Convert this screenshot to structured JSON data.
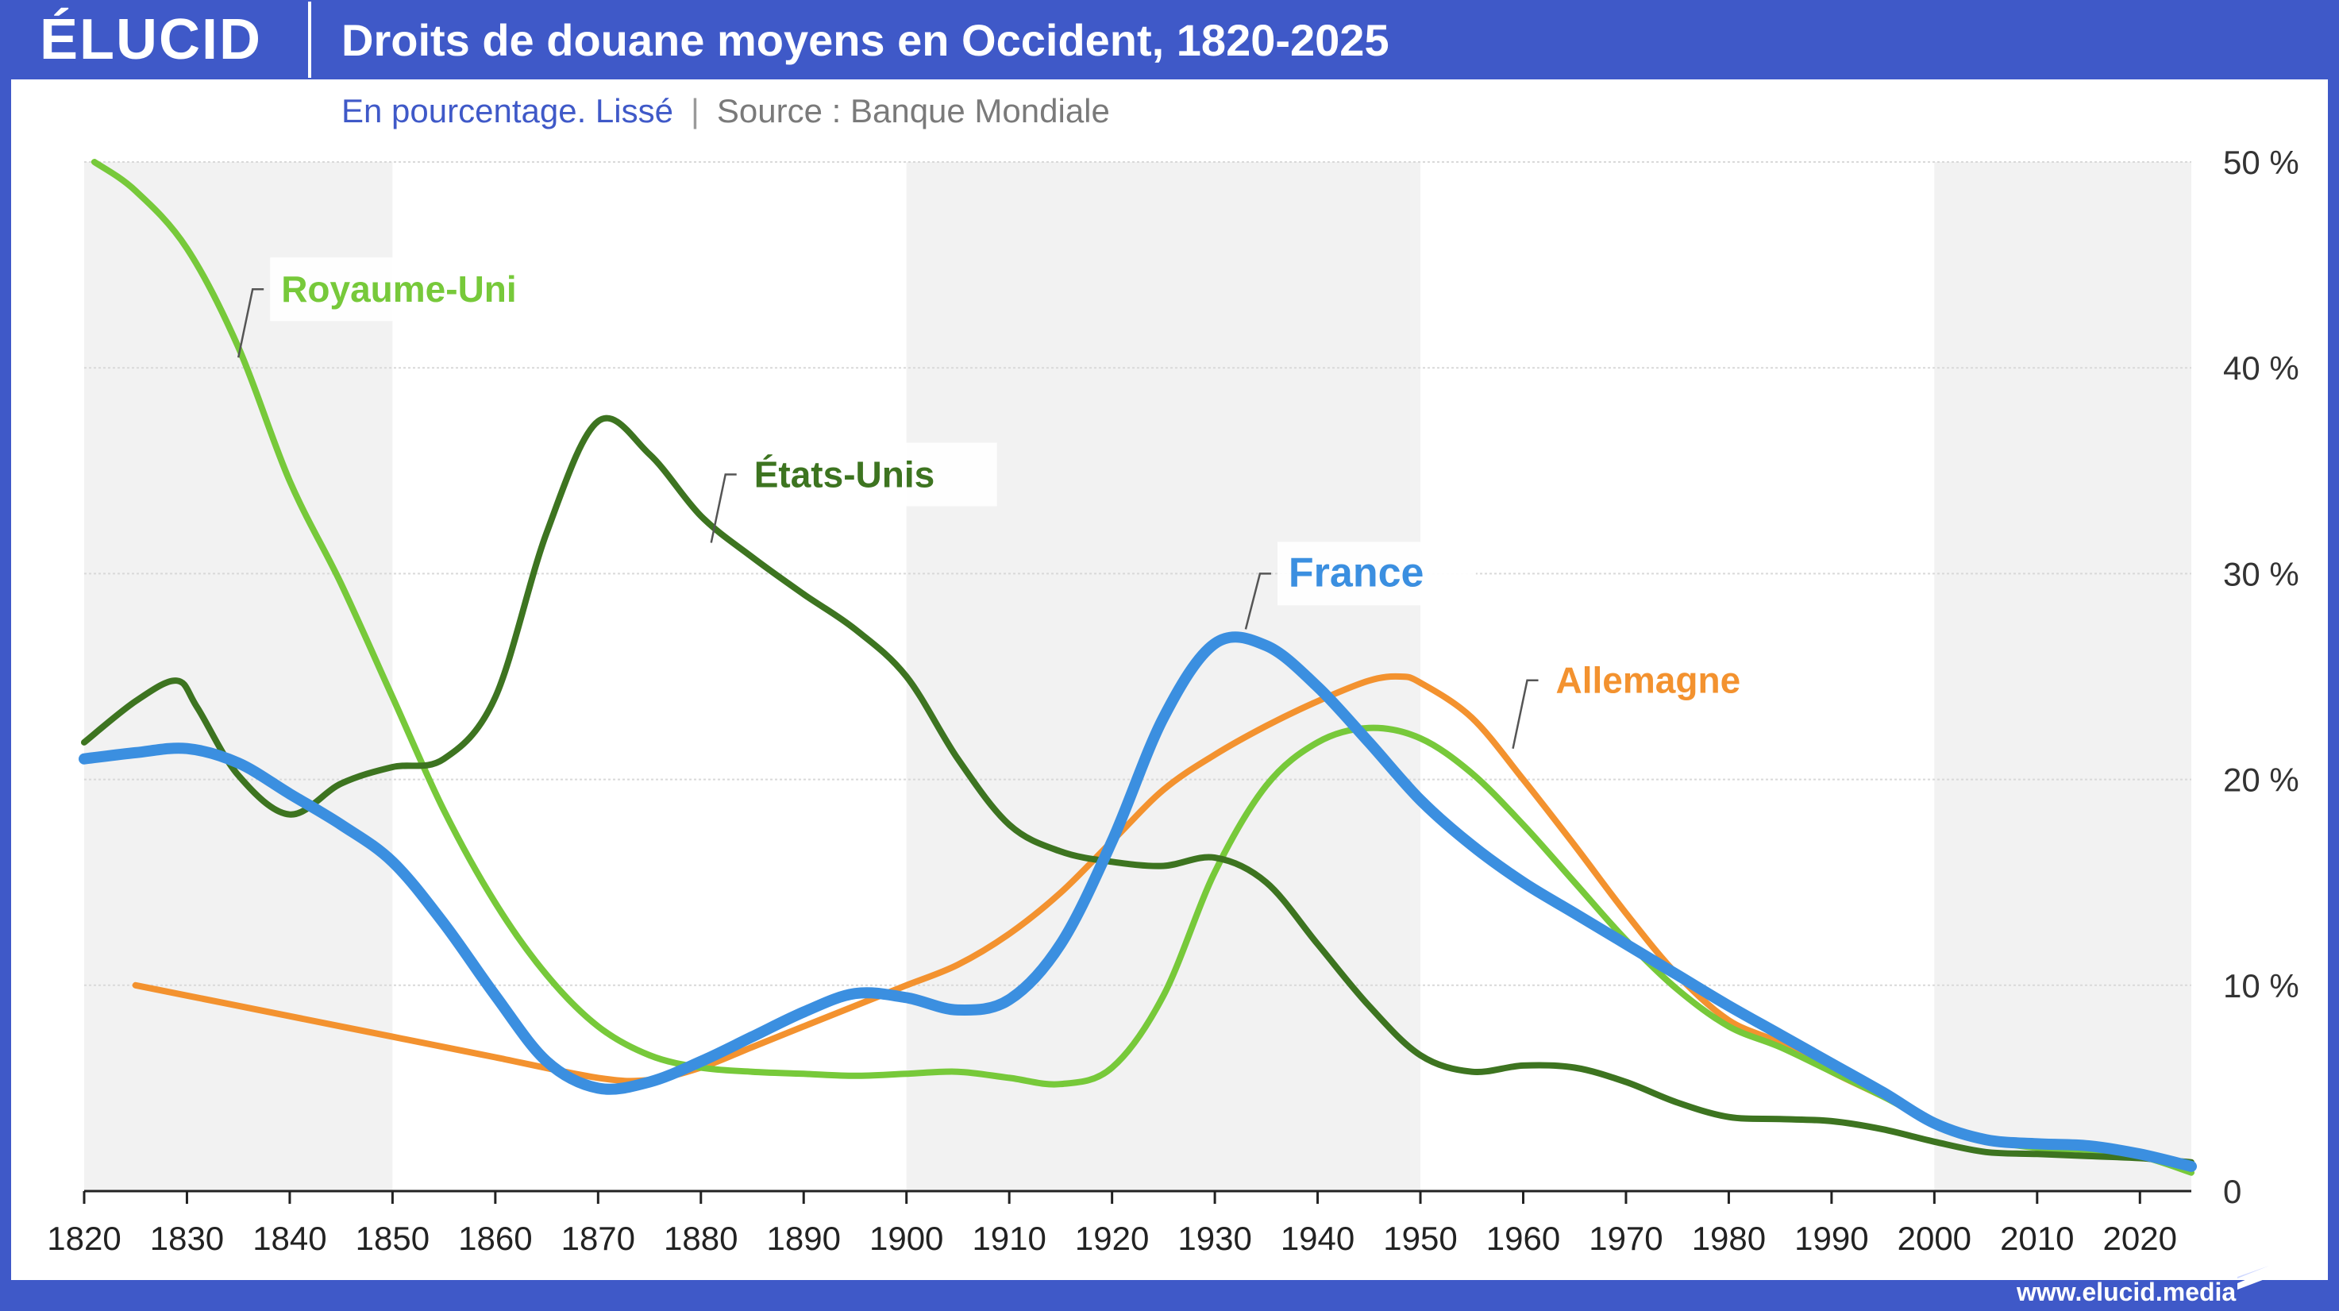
{
  "header": {
    "logo": "ÉLUCID",
    "title": "Droits de douane moyens en Occident, 1820-2025"
  },
  "subtitle": {
    "main": "En pourcentage. Lissé",
    "separator": "|",
    "source": "Source : Banque Mondiale"
  },
  "footer": {
    "url": "www.elucid.media"
  },
  "colors": {
    "brand": "#3f59c8",
    "france": "#3b8fe0",
    "royaume_uni": "#77c93a",
    "etats_unis": "#3d7420",
    "allemagne": "#f3922f"
  },
  "chart_data": {
    "type": "line",
    "title": "Droits de douane moyens en Occident, 1820-2025",
    "subtitle": "En pourcentage. Lissé",
    "xlim": [
      1820,
      2025
    ],
    "ylim": [
      0,
      50
    ],
    "x_ticks": [
      1820,
      1830,
      1840,
      1850,
      1860,
      1870,
      1880,
      1890,
      1900,
      1910,
      1920,
      1930,
      1940,
      1950,
      1960,
      1970,
      1980,
      1990,
      2000,
      2010,
      2020
    ],
    "y_ticks": [
      {
        "value": 0,
        "label": "0"
      },
      {
        "value": 10,
        "label": "10 %"
      },
      {
        "value": 20,
        "label": "20 %"
      },
      {
        "value": 30,
        "label": "30 %"
      },
      {
        "value": 40,
        "label": "40 %"
      },
      {
        "value": 50,
        "label": "50 %"
      }
    ],
    "y_axis_side": "right",
    "grid": "horizontal",
    "shaded_bands": [
      [
        1820,
        1850
      ],
      [
        1900,
        1950
      ],
      [
        2000,
        2025
      ]
    ],
    "series": [
      {
        "name": "Royaume-Uni",
        "color": "#77c93a",
        "label_year": 1835,
        "label_value": 40.5,
        "points": [
          [
            1821,
            50
          ],
          [
            1825,
            48.6
          ],
          [
            1830,
            45.8
          ],
          [
            1835,
            41
          ],
          [
            1840,
            34.5
          ],
          [
            1845,
            29.5
          ],
          [
            1850,
            24
          ],
          [
            1855,
            18.5
          ],
          [
            1860,
            14
          ],
          [
            1865,
            10.5
          ],
          [
            1870,
            8
          ],
          [
            1875,
            6.6
          ],
          [
            1880,
            6
          ],
          [
            1885,
            5.8
          ],
          [
            1890,
            5.7
          ],
          [
            1895,
            5.6
          ],
          [
            1900,
            5.7
          ],
          [
            1905,
            5.8
          ],
          [
            1910,
            5.5
          ],
          [
            1915,
            5.2
          ],
          [
            1920,
            6
          ],
          [
            1925,
            9.5
          ],
          [
            1930,
            15.5
          ],
          [
            1935,
            19.7
          ],
          [
            1940,
            21.8
          ],
          [
            1945,
            22.5
          ],
          [
            1950,
            22
          ],
          [
            1955,
            20.3
          ],
          [
            1960,
            17.8
          ],
          [
            1965,
            15
          ],
          [
            1970,
            12.2
          ],
          [
            1975,
            9.8
          ],
          [
            1980,
            8
          ],
          [
            1985,
            7
          ],
          [
            1990,
            5.8
          ],
          [
            1995,
            4.6
          ],
          [
            2000,
            3.3
          ],
          [
            2005,
            2.5
          ],
          [
            2010,
            2.1
          ],
          [
            2015,
            2
          ],
          [
            2020,
            1.7
          ],
          [
            2025,
            0.9
          ]
        ]
      },
      {
        "name": "États-Unis",
        "color": "#3d7420",
        "label_year": 1881,
        "label_value": 31.5,
        "points": [
          [
            1820,
            21.8
          ],
          [
            1825,
            23.8
          ],
          [
            1829,
            24.8
          ],
          [
            1831,
            23.5
          ],
          [
            1835,
            20.2
          ],
          [
            1840,
            18.3
          ],
          [
            1845,
            19.8
          ],
          [
            1850,
            20.6
          ],
          [
            1855,
            21
          ],
          [
            1860,
            24
          ],
          [
            1865,
            32
          ],
          [
            1870,
            37.4
          ],
          [
            1875,
            35.8
          ],
          [
            1880,
            32.8
          ],
          [
            1885,
            30.8
          ],
          [
            1890,
            29
          ],
          [
            1895,
            27.3
          ],
          [
            1900,
            25
          ],
          [
            1905,
            21
          ],
          [
            1910,
            17.8
          ],
          [
            1915,
            16.5
          ],
          [
            1920,
            16
          ],
          [
            1925,
            15.8
          ],
          [
            1930,
            16.2
          ],
          [
            1935,
            15
          ],
          [
            1940,
            12
          ],
          [
            1945,
            9
          ],
          [
            1950,
            6.6
          ],
          [
            1955,
            5.8
          ],
          [
            1960,
            6.1
          ],
          [
            1965,
            6
          ],
          [
            1970,
            5.3
          ],
          [
            1975,
            4.3
          ],
          [
            1980,
            3.6
          ],
          [
            1985,
            3.5
          ],
          [
            1990,
            3.4
          ],
          [
            1995,
            3
          ],
          [
            2000,
            2.4
          ],
          [
            2005,
            1.9
          ],
          [
            2010,
            1.8
          ],
          [
            2015,
            1.7
          ],
          [
            2020,
            1.6
          ],
          [
            2025,
            1.4
          ]
        ]
      },
      {
        "name": "France",
        "color": "#3b8fe0",
        "label_year": 1933,
        "label_value": 27.3,
        "points": [
          [
            1820,
            21
          ],
          [
            1825,
            21.3
          ],
          [
            1830,
            21.5
          ],
          [
            1835,
            20.8
          ],
          [
            1840,
            19.3
          ],
          [
            1845,
            17.8
          ],
          [
            1850,
            16
          ],
          [
            1855,
            13
          ],
          [
            1860,
            9.5
          ],
          [
            1865,
            6.3
          ],
          [
            1870,
            5
          ],
          [
            1875,
            5.3
          ],
          [
            1880,
            6.3
          ],
          [
            1885,
            7.5
          ],
          [
            1890,
            8.7
          ],
          [
            1895,
            9.6
          ],
          [
            1900,
            9.4
          ],
          [
            1905,
            8.8
          ],
          [
            1910,
            9.3
          ],
          [
            1915,
            12
          ],
          [
            1920,
            17
          ],
          [
            1925,
            23
          ],
          [
            1930,
            26.6
          ],
          [
            1935,
            26.5
          ],
          [
            1940,
            24.5
          ],
          [
            1945,
            21.8
          ],
          [
            1950,
            19
          ],
          [
            1955,
            16.8
          ],
          [
            1960,
            15
          ],
          [
            1965,
            13.5
          ],
          [
            1970,
            12
          ],
          [
            1975,
            10.5
          ],
          [
            1980,
            9
          ],
          [
            1985,
            7.6
          ],
          [
            1990,
            6.2
          ],
          [
            1995,
            4.8
          ],
          [
            2000,
            3.3
          ],
          [
            2005,
            2.5
          ],
          [
            2010,
            2.3
          ],
          [
            2015,
            2.2
          ],
          [
            2020,
            1.8
          ],
          [
            2025,
            1.2
          ]
        ]
      },
      {
        "name": "Allemagne",
        "color": "#f3922f",
        "label_year": 1959,
        "label_value": 21.5,
        "points": [
          [
            1825,
            10
          ],
          [
            1830,
            9.5
          ],
          [
            1840,
            8.5
          ],
          [
            1850,
            7.5
          ],
          [
            1860,
            6.5
          ],
          [
            1870,
            5.5
          ],
          [
            1875,
            5.4
          ],
          [
            1880,
            6
          ],
          [
            1885,
            7
          ],
          [
            1890,
            8
          ],
          [
            1895,
            9
          ],
          [
            1900,
            10
          ],
          [
            1905,
            11
          ],
          [
            1910,
            12.5
          ],
          [
            1915,
            14.5
          ],
          [
            1920,
            17
          ],
          [
            1925,
            19.5
          ],
          [
            1930,
            21.2
          ],
          [
            1935,
            22.6
          ],
          [
            1940,
            23.8
          ],
          [
            1945,
            24.8
          ],
          [
            1948,
            25
          ],
          [
            1950,
            24.7
          ],
          [
            1955,
            23
          ],
          [
            1960,
            20
          ],
          [
            1965,
            16.8
          ],
          [
            1970,
            13.5
          ],
          [
            1975,
            10.5
          ],
          [
            1980,
            8.3
          ],
          [
            1985,
            7.2
          ],
          [
            1990,
            5.8
          ],
          [
            1995,
            4.6
          ],
          [
            2000,
            3.4
          ]
        ]
      }
    ]
  }
}
